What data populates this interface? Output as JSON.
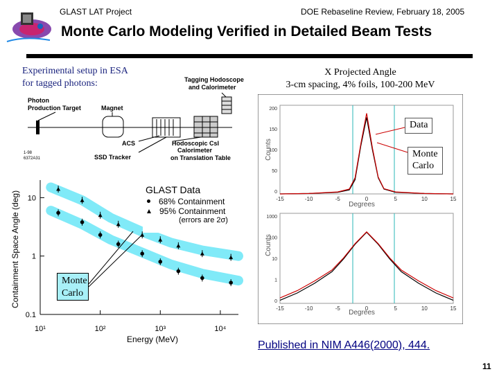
{
  "header": {
    "left": "GLAST LAT Project",
    "right": "DOE Rebaseline Review, February 18, 2005"
  },
  "title": "Monte Carlo Modeling Verified in Detailed Beam Tests",
  "setup_caption": [
    "Experimental setup in ESA",
    "for tagged photons:"
  ],
  "diagram": {
    "tagging": [
      "Tagging Hodoscope",
      "and Calorimeter"
    ],
    "photon_target": [
      "Photon",
      "Production Target"
    ],
    "magnet": "Magnet",
    "acs": "ACS",
    "hodoscopic": [
      "Hodoscopic CsI",
      "Calorimeter"
    ],
    "ssd": "SSD Tracker",
    "translation": [
      "on Translation Table"
    ],
    "code": [
      "1-98",
      "6372A31"
    ]
  },
  "proj_caption": [
    "X Projected Angle",
    "3-cm spacing, 4% foils, 100-200 MeV"
  ],
  "labels": {
    "data": "Data",
    "monte_carlo": [
      "Monte",
      "Carlo"
    ],
    "glast_data": "GLAST Data",
    "c68": "68% Containment",
    "c95": "95% Containment",
    "errors": "(errors are 2σ)",
    "mc_left": [
      "Monte",
      "Carlo"
    ]
  },
  "published": "Published in NIM A446(2000), 444.",
  "page_number": "11",
  "chart_data": [
    {
      "type": "scatter",
      "title": "",
      "xlabel": "Energy (MeV)",
      "ylabel": "Containment Space Angle (deg)",
      "xscale": "log",
      "yscale": "log",
      "xlim": [
        10,
        20000
      ],
      "ylim": [
        0.1,
        20
      ],
      "x_tick_labels": [
        "10¹",
        "10²",
        "10³",
        "10⁴"
      ],
      "y_tick_labels": [
        "10",
        "1",
        "0.1"
      ],
      "series": [
        {
          "name": "95% Containment",
          "x": [
            20,
            50,
            100,
            200,
            500,
            1000,
            2000,
            5000,
            15000
          ],
          "y": [
            14,
            9,
            5,
            3.5,
            2.3,
            1.9,
            1.5,
            1.1,
            0.95
          ]
        },
        {
          "name": "68% Containment",
          "x": [
            20,
            50,
            100,
            200,
            500,
            1000,
            2000,
            5000,
            15000
          ],
          "y": [
            5.5,
            3.8,
            2.3,
            1.6,
            1.1,
            0.8,
            0.55,
            0.42,
            0.35
          ]
        }
      ],
      "bands": [
        {
          "name": "Monte Carlo",
          "x": [
            15,
            50,
            150,
            500,
            1500,
            5000,
            20000
          ],
          "y": [
            15,
            9,
            4.5,
            2.6,
            1.7,
            1.25,
            1.0
          ]
        },
        {
          "name": "Monte Carlo",
          "x": [
            15,
            50,
            150,
            500,
            1500,
            5000,
            20000
          ],
          "y": [
            6,
            3.5,
            1.9,
            1.15,
            0.72,
            0.5,
            0.38
          ]
        }
      ]
    },
    {
      "type": "line",
      "xlabel": "Degrees",
      "ylabel": "Counts",
      "x_tick_labels": [
        "-15",
        "-10",
        "-5",
        "0",
        "5",
        "10",
        "15"
      ],
      "y_tick_labels": [
        "200",
        "150",
        "100",
        "50",
        "0"
      ],
      "series": [
        {
          "name": "Data",
          "x": [
            -15,
            -10,
            -5,
            -3,
            -2,
            -1,
            0,
            1,
            2,
            3,
            5,
            10,
            15
          ],
          "y": [
            0,
            1,
            4,
            10,
            35,
            120,
            190,
            110,
            40,
            12,
            4,
            1,
            0
          ]
        },
        {
          "name": "Monte Carlo",
          "x": [
            -15,
            -10,
            -5,
            -3,
            -2,
            -1,
            0,
            1,
            2,
            3,
            5,
            10,
            15
          ],
          "y": [
            0,
            1,
            5,
            12,
            40,
            125,
            200,
            115,
            42,
            13,
            5,
            1,
            0
          ]
        }
      ]
    },
    {
      "type": "line",
      "xlabel": "Degrees",
      "ylabel": "Counts",
      "yscale": "log",
      "x_tick_labels": [
        "-15",
        "-10",
        "-5",
        "0",
        "5",
        "10",
        "15"
      ],
      "y_tick_labels": [
        "1000",
        "100",
        "10",
        "1",
        "0"
      ],
      "series": [
        {
          "name": "Data",
          "x": [
            -15,
            -12,
            -9,
            -6,
            -4,
            -2,
            0,
            2,
            4,
            6,
            9,
            12,
            15
          ],
          "y": [
            0.4,
            0.8,
            2,
            6,
            20,
            80,
            250,
            80,
            20,
            6,
            2,
            0.8,
            0.4
          ]
        },
        {
          "name": "Monte Carlo",
          "x": [
            -15,
            -12,
            -9,
            -6,
            -4,
            -2,
            0,
            2,
            4,
            6,
            9,
            12,
            15
          ],
          "y": [
            0.5,
            1,
            2.5,
            7,
            22,
            85,
            260,
            85,
            22,
            7,
            2.5,
            1,
            0.5
          ]
        }
      ]
    }
  ]
}
